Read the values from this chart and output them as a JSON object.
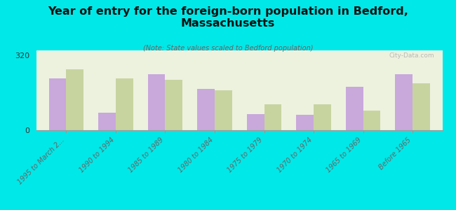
{
  "title": "Year of entry for the foreign-born population in Bedford,\nMassachusetts",
  "subtitle": "(Note: State values scaled to Bedford population)",
  "categories": [
    "1995 to March 2...",
    "1990 to 1994",
    "1985 to 1989",
    "1980 to 1984",
    "1975 to 1979",
    "1970 to 1974",
    "1965 to 1969",
    "Before 1965"
  ],
  "bedford_values": [
    220,
    75,
    240,
    175,
    70,
    65,
    185,
    240
  ],
  "massachusetts_values": [
    260,
    220,
    215,
    170,
    110,
    110,
    85,
    200
  ],
  "bedford_color": "#c9a8dc",
  "massachusetts_color": "#c8d4a0",
  "background_color": "#00e8e8",
  "plot_bg_color": "#edf2df",
  "ytick": 320,
  "ylim": [
    0,
    340
  ],
  "watermark": "City-Data.com"
}
